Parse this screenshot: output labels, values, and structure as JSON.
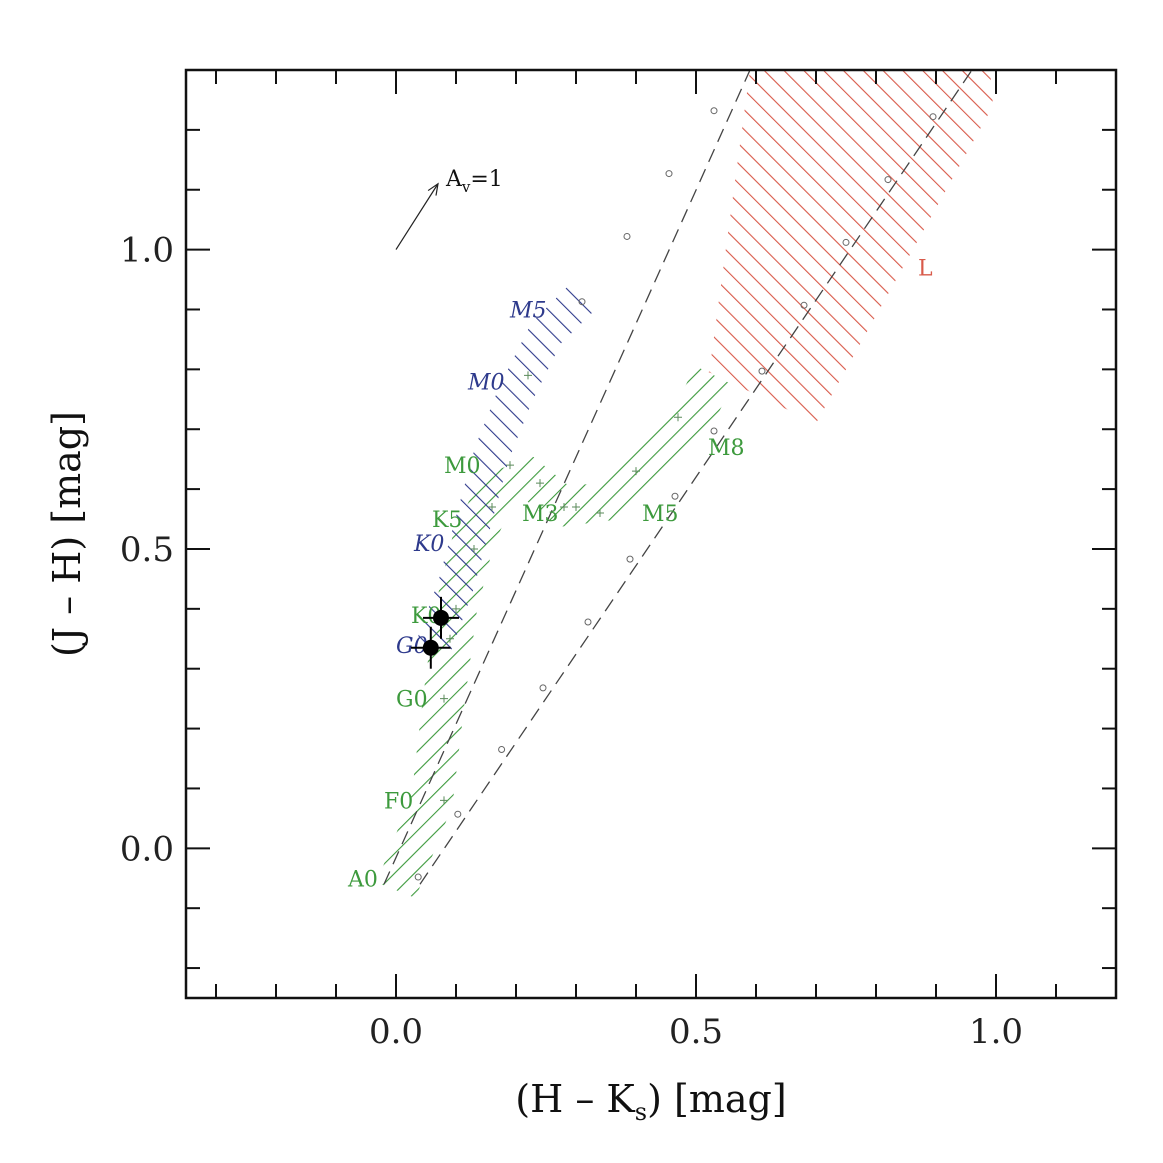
{
  "chart_data": {
    "type": "scatter",
    "xlabel": {
      "main": "(H – K",
      "sub": "s",
      "tail": ") [mag]"
    },
    "ylabel": "(J – H) [mag]",
    "xlim": [
      -0.35,
      1.2
    ],
    "ylim": [
      -0.25,
      1.3
    ],
    "x_major_ticks": [
      0.0,
      0.5,
      1.0
    ],
    "x_tick_labels": [
      "0.0",
      "0.5",
      "1.0"
    ],
    "x_minor_step": 0.1,
    "y_major_ticks": [
      0.0,
      0.5,
      1.0
    ],
    "y_tick_labels": [
      "0.0",
      "0.5",
      "1.0"
    ],
    "y_minor_step": 0.1,
    "colors": {
      "dwarf": "#3d9a3d",
      "giant": "#2e3a8c",
      "brown_dwarf": "#d85a4a",
      "axis": "#111111"
    },
    "reddening_vector": {
      "label_main": "A",
      "label_sub": "v",
      "label_tail": "=1",
      "from": [
        0.0,
        1.0
      ],
      "to": [
        0.07,
        1.11
      ]
    },
    "reddening_lines": [
      {
        "name": "upper",
        "from": [
          -0.02,
          -0.06
        ],
        "to": [
          0.59,
          1.3
        ]
      },
      {
        "name": "lower",
        "from": [
          0.04,
          -0.06
        ],
        "to": [
          0.96,
          1.3
        ]
      }
    ],
    "reddening_line_markers": {
      "upper": [
        [
          0.037,
          -0.048
        ],
        [
          0.103,
          0.057
        ],
        [
          0.176,
          0.165
        ],
        [
          0.245,
          0.268
        ],
        [
          0.32,
          0.378
        ],
        [
          0.39,
          0.483
        ],
        [
          0.465,
          0.588
        ],
        [
          0.53,
          0.697
        ],
        [
          0.61,
          0.797
        ],
        [
          0.68,
          0.907
        ],
        [
          0.75,
          1.012
        ],
        [
          0.82,
          1.117
        ],
        [
          0.895,
          1.222
        ]
      ],
      "lower": [
        [
          0.31,
          0.913
        ],
        [
          0.385,
          1.022
        ],
        [
          0.455,
          1.127
        ],
        [
          0.53,
          1.232
        ]
      ]
    },
    "regions": [
      {
        "name": "dwarf-sequence",
        "color": "#3d9a3d",
        "hatch": "/",
        "center": [
          [
            0.0,
            -0.07
          ],
          [
            0.06,
            0.08
          ],
          [
            0.08,
            0.25
          ],
          [
            0.1,
            0.4
          ],
          [
            0.13,
            0.52
          ],
          [
            0.17,
            0.6
          ],
          [
            0.22,
            0.62
          ],
          [
            0.28,
            0.57
          ],
          [
            0.35,
            0.58
          ],
          [
            0.43,
            0.65
          ],
          [
            0.5,
            0.73
          ],
          [
            0.53,
            0.79
          ]
        ],
        "half_width": 0.035
      },
      {
        "name": "giant-sequence",
        "color": "#2e3a8c",
        "hatch": "\\",
        "center": [
          [
            0.06,
            0.33
          ],
          [
            0.1,
            0.44
          ],
          [
            0.13,
            0.55
          ],
          [
            0.16,
            0.66
          ],
          [
            0.2,
            0.76
          ],
          [
            0.25,
            0.86
          ],
          [
            0.31,
            0.92
          ]
        ],
        "half_width": 0.03
      },
      {
        "name": "brown-dwarf-L-region",
        "color": "#d85a4a",
        "hatch": "\\",
        "polygon": [
          [
            0.59,
            1.3
          ],
          [
            0.99,
            1.3
          ],
          [
            0.995,
            1.24
          ],
          [
            0.7,
            0.71
          ],
          [
            0.47,
            0.82
          ],
          [
            0.52,
            0.78
          ]
        ]
      }
    ],
    "labels": [
      {
        "text": "A0",
        "x": -0.08,
        "y": -0.05,
        "color": "#3d9a3d",
        "italic": false
      },
      {
        "text": "F0",
        "x": -0.02,
        "y": 0.08,
        "color": "#3d9a3d",
        "italic": false
      },
      {
        "text": "G0",
        "x": 0.0,
        "y": 0.25,
        "color": "#3d9a3d",
        "italic": false
      },
      {
        "text": "G0",
        "x": 0.0,
        "y": 0.34,
        "color": "#2e3a8c",
        "italic": true
      },
      {
        "text": "K0",
        "x": 0.025,
        "y": 0.39,
        "color": "#3d9a3d",
        "italic": false
      },
      {
        "text": "K0",
        "x": 0.03,
        "y": 0.51,
        "color": "#2e3a8c",
        "italic": true
      },
      {
        "text": "K5",
        "x": 0.06,
        "y": 0.55,
        "color": "#3d9a3d",
        "italic": false
      },
      {
        "text": "M0",
        "x": 0.08,
        "y": 0.64,
        "color": "#3d9a3d",
        "italic": false
      },
      {
        "text": "M0",
        "x": 0.12,
        "y": 0.78,
        "color": "#2e3a8c",
        "italic": true
      },
      {
        "text": "M5",
        "x": 0.19,
        "y": 0.9,
        "color": "#2e3a8c",
        "italic": true
      },
      {
        "text": "M3",
        "x": 0.21,
        "y": 0.56,
        "color": "#3d9a3d",
        "italic": false
      },
      {
        "text": "M5",
        "x": 0.41,
        "y": 0.56,
        "color": "#3d9a3d",
        "italic": false
      },
      {
        "text": "M8",
        "x": 0.52,
        "y": 0.67,
        "color": "#3d9a3d",
        "italic": false
      },
      {
        "text": "L",
        "x": 0.87,
        "y": 0.97,
        "color": "#d85a4a",
        "italic": false
      }
    ],
    "sequence_markers": [
      {
        "x": 0.08,
        "y": 0.08
      },
      {
        "x": 0.08,
        "y": 0.25
      },
      {
        "x": 0.09,
        "y": 0.35
      },
      {
        "x": 0.1,
        "y": 0.4
      },
      {
        "x": 0.13,
        "y": 0.5
      },
      {
        "x": 0.19,
        "y": 0.64
      },
      {
        "x": 0.24,
        "y": 0.61
      },
      {
        "x": 0.28,
        "y": 0.57
      },
      {
        "x": 0.3,
        "y": 0.57
      },
      {
        "x": 0.34,
        "y": 0.56
      },
      {
        "x": 0.4,
        "y": 0.63
      },
      {
        "x": 0.47,
        "y": 0.72
      },
      {
        "x": 0.22,
        "y": 0.79
      },
      {
        "x": 0.16,
        "y": 0.57
      }
    ],
    "series": [
      {
        "name": "observed",
        "points": [
          {
            "x": 0.075,
            "y": 0.385,
            "xerr": 0.03,
            "yerr": 0.035
          },
          {
            "x": 0.058,
            "y": 0.335,
            "xerr": 0.033,
            "yerr": 0.035
          }
        ]
      }
    ]
  }
}
